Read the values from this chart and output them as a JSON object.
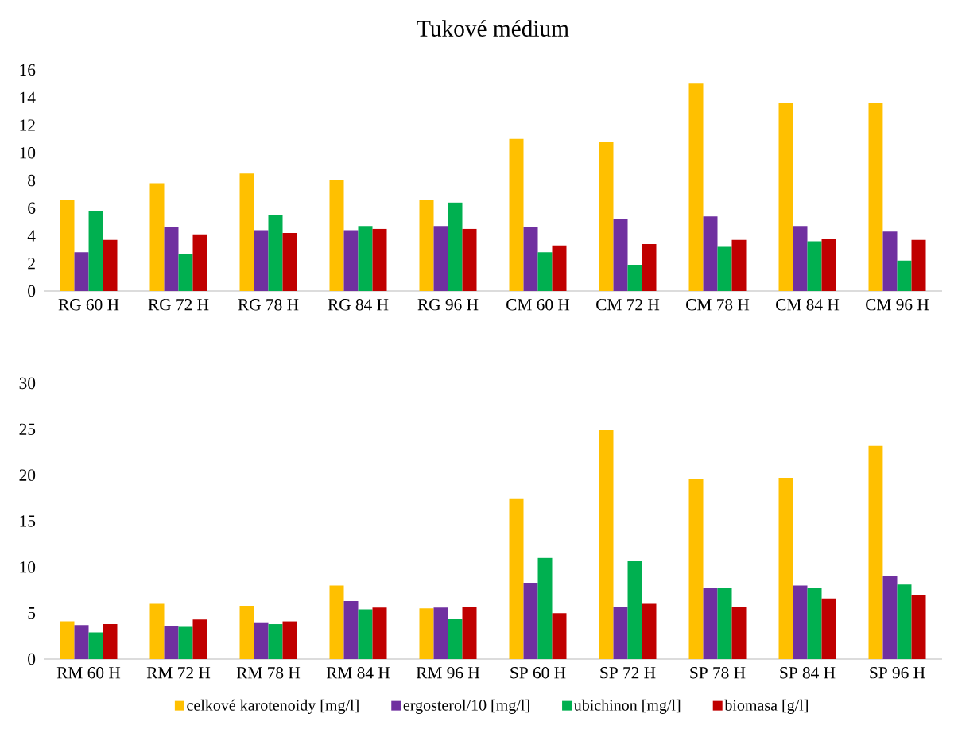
{
  "chart_data": [
    {
      "type": "bar",
      "title": "Tukové médium",
      "categories": [
        "RG 60 H",
        "RG 72 H",
        "RG 78 H",
        "RG 84 H",
        "RG 96 H",
        "CM 60 H",
        "CM 72 H",
        "CM 78 H",
        "CM 84 H",
        "CM 96 H"
      ],
      "series": [
        {
          "color": "#ffc000",
          "values": [
            6.6,
            7.8,
            8.5,
            8.0,
            6.6,
            11.0,
            10.8,
            15.0,
            13.6,
            13.6
          ]
        },
        {
          "color": "#7030a0",
          "values": [
            2.8,
            4.6,
            4.4,
            4.4,
            4.7,
            4.6,
            5.2,
            5.4,
            4.7,
            4.3
          ]
        },
        {
          "color": "#00b050",
          "values": [
            5.8,
            2.7,
            5.5,
            4.7,
            6.4,
            2.8,
            1.9,
            3.2,
            3.6,
            2.2
          ]
        },
        {
          "color": "#c00000",
          "values": [
            3.7,
            4.1,
            4.2,
            4.5,
            4.5,
            3.3,
            3.4,
            3.7,
            3.8,
            3.7
          ]
        }
      ],
      "ylim": [
        0,
        16
      ],
      "yticks": [
        0,
        2,
        4,
        6,
        8,
        10,
        12,
        14,
        16
      ]
    },
    {
      "type": "bar",
      "categories": [
        "RM 60 H",
        "RM 72 H",
        "RM 78 H",
        "RM 84 H",
        "RM 96 H",
        "SP 60 H",
        "SP 72 H",
        "SP 78 H",
        "SP 84 H",
        "SP 96 H"
      ],
      "series": [
        {
          "name": "celkové karotenoidy [mg/l]",
          "color": "#ffc000",
          "values": [
            4.1,
            6.0,
            5.8,
            8.0,
            5.5,
            17.4,
            24.9,
            19.6,
            19.7,
            23.2
          ]
        },
        {
          "name": "ergosterol/10 [mg/l]",
          "color": "#7030a0",
          "values": [
            3.7,
            3.6,
            4.0,
            6.3,
            5.6,
            8.3,
            5.7,
            7.7,
            8.0,
            9.0
          ]
        },
        {
          "name": "ubichinon [mg/l]",
          "color": "#00b050",
          "values": [
            2.9,
            3.5,
            3.8,
            5.4,
            4.4,
            11.0,
            10.7,
            7.7,
            7.7,
            8.1
          ]
        },
        {
          "name": "biomasa [g/l]",
          "color": "#c00000",
          "values": [
            3.8,
            4.3,
            4.1,
            5.6,
            5.7,
            5.0,
            6.0,
            5.7,
            6.6,
            7.0
          ]
        }
      ],
      "ylim": [
        0,
        30
      ],
      "yticks": [
        0,
        5,
        10,
        15,
        20,
        25,
        30
      ],
      "legend": "bottom"
    }
  ]
}
